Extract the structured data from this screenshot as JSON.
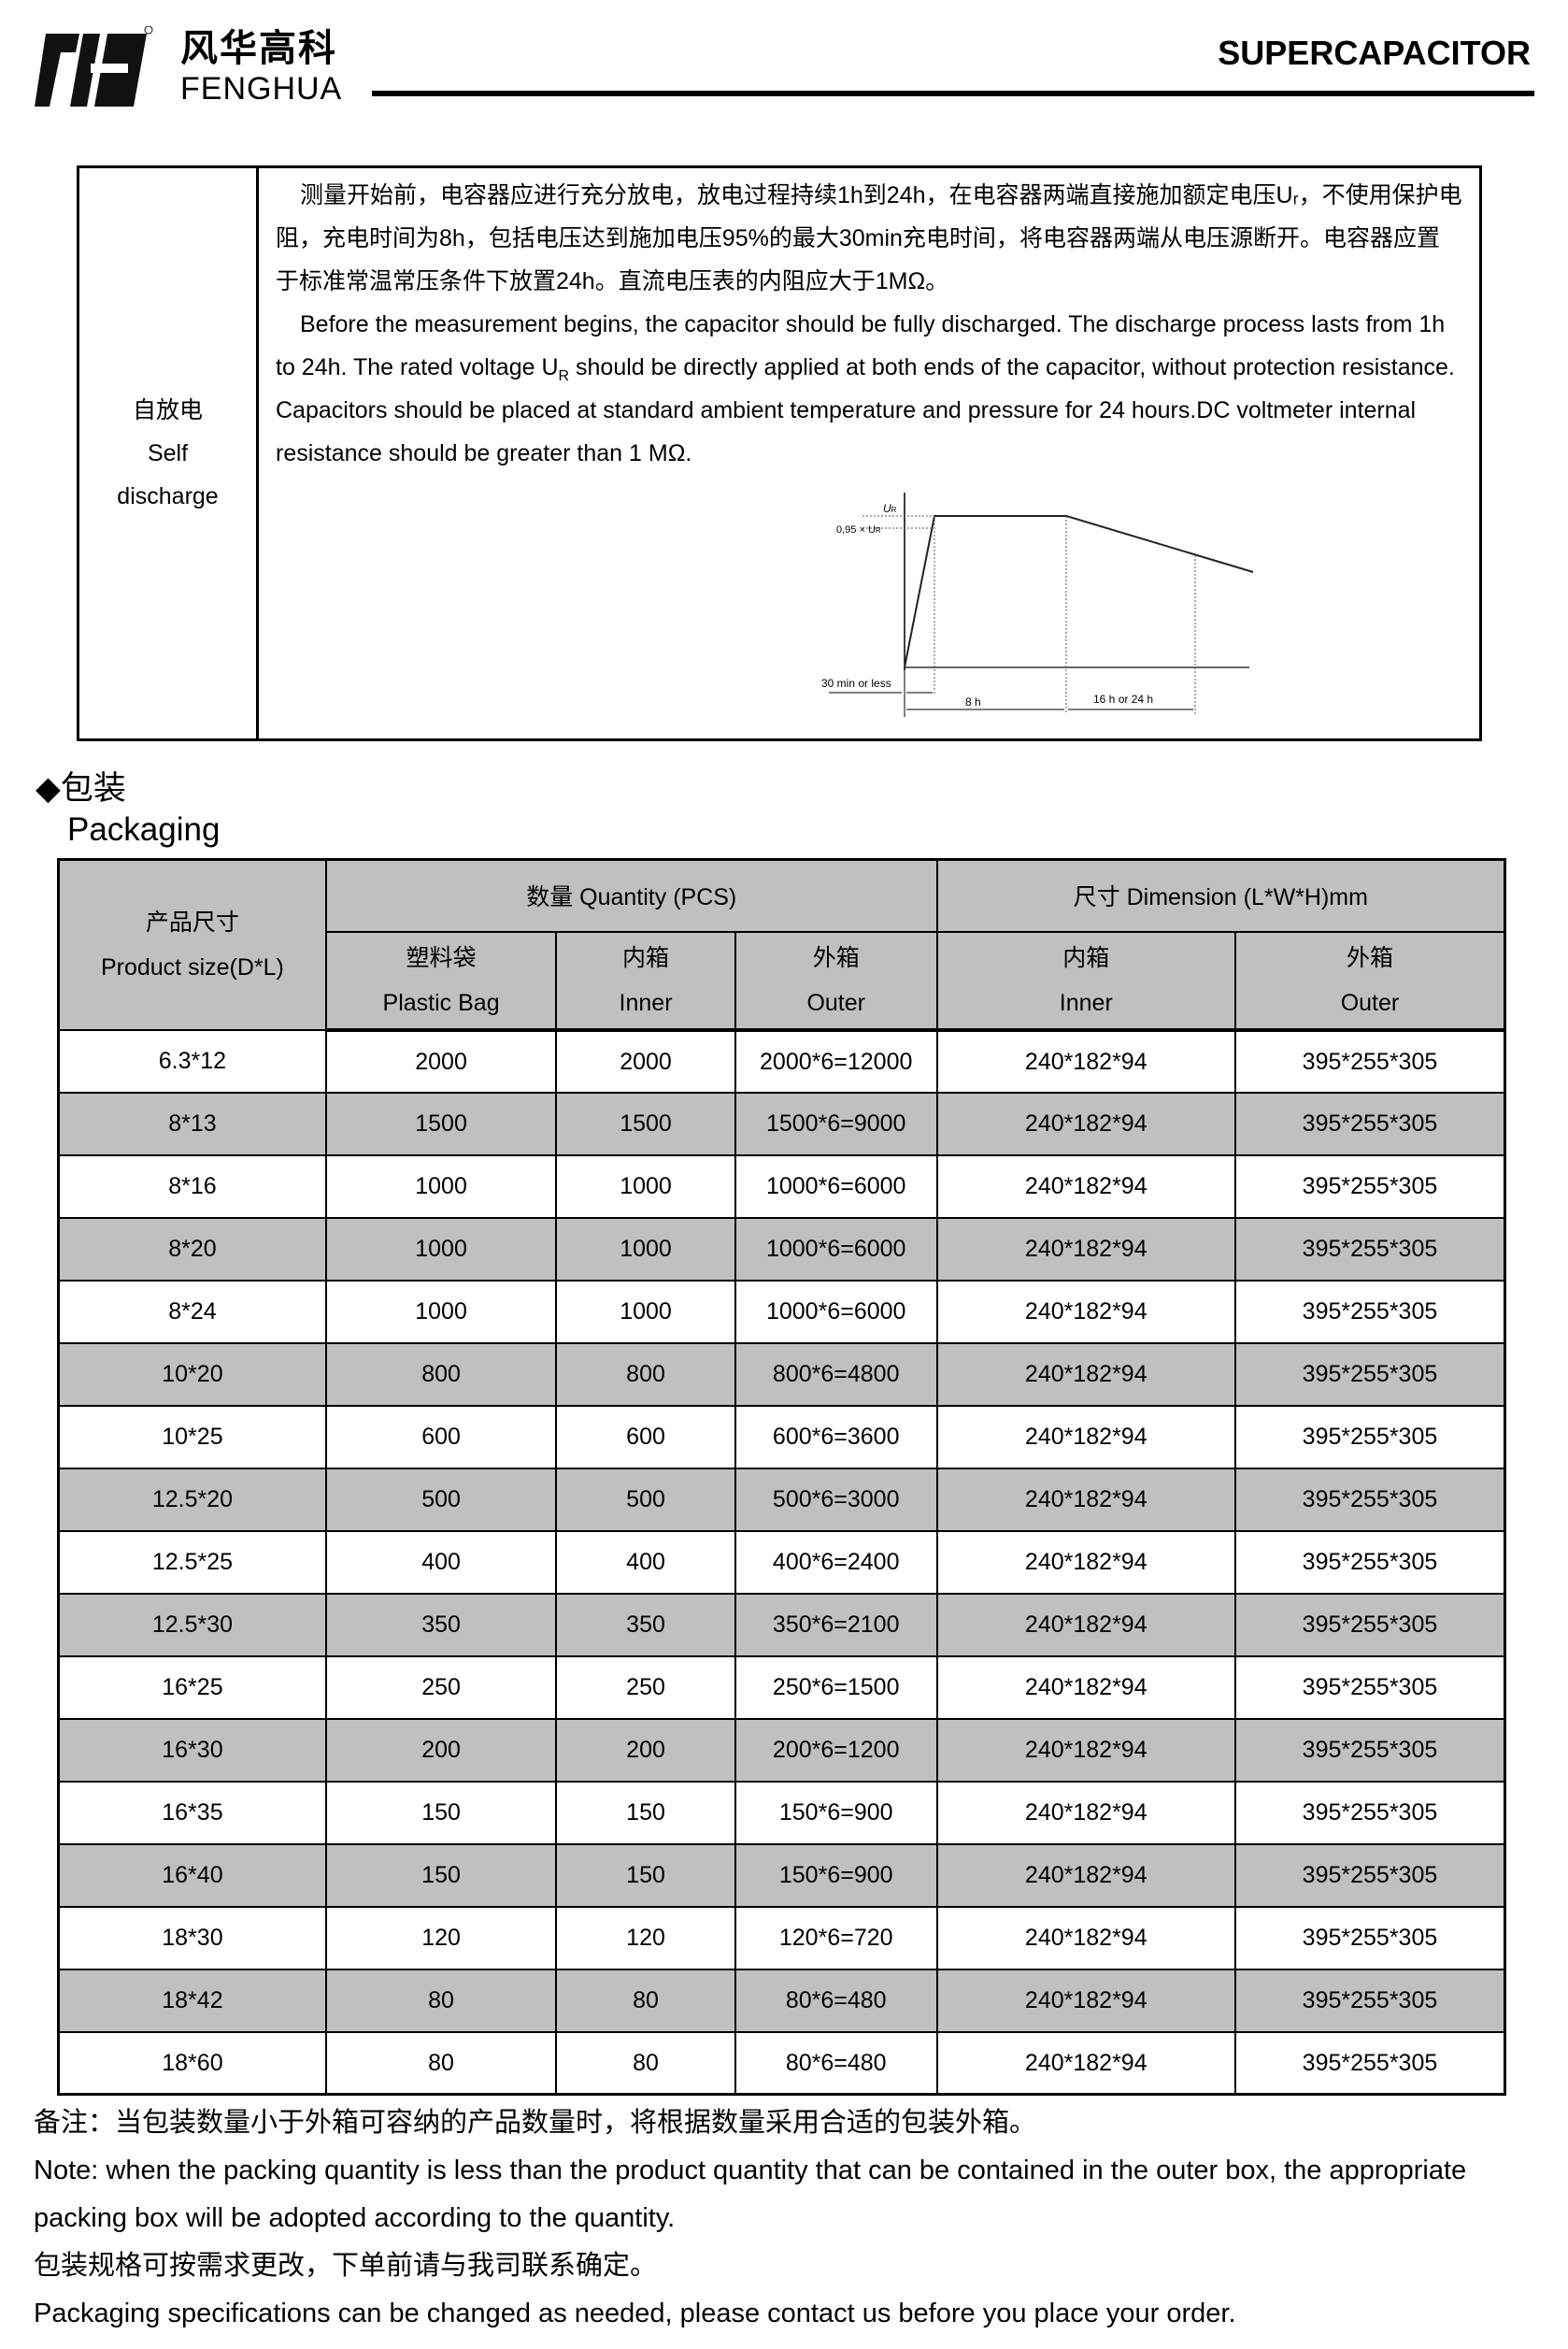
{
  "header": {
    "brand_cn": "风华高科",
    "brand_en": "FENGHUA",
    "logo_mark": "FH",
    "doc_title": "SUPERCAPACITOR"
  },
  "self_discharge": {
    "label_cn": "自放电",
    "label_en_1": "Self",
    "label_en_2": "discharge",
    "text_cn": "测量开始前，电容器应进行充分放电，放电过程持续1h到24h，在电容器两端直接施加额定电压Uᵣ，不使用保护电阻，充电时间为8h，包括电压达到施加电压95%的最大30min充电时间，将电容器两端从电压源断开。电容器应置于标准常温常压条件下放置24h。直流电压表的内阻应大于1MΩ。",
    "text_en_before": "Before the measurement begins, the capacitor should be fully discharged. The discharge process lasts from 1h to 24h. The rated voltage U",
    "text_en_sub": "R",
    "text_en_after": " should be directly applied at both ends of the capacitor, without protection resistance. Capacitors should be placed at standard ambient temperature and pressure for 24 hours.DC voltmeter internal resistance should be greater than 1 MΩ.",
    "diagram": {
      "label_ur": "U",
      "label_ur_sub": "R",
      "label_095": "0,95 × U",
      "label_30min": "30 min or less",
      "label_8h": "8 h",
      "label_16h": "16 h or 24 h"
    }
  },
  "packaging": {
    "heading_cn": "◆包装",
    "heading_en": "Packaging",
    "headers": {
      "product_size_cn": "产品尺寸",
      "product_size_en": "Product size(D*L)",
      "quantity": "数量 Quantity (PCS)",
      "dimension": "尺寸 Dimension (L*W*H)mm",
      "plastic_bag_cn": "塑料袋",
      "plastic_bag_en": "Plastic Bag",
      "inner_cn": "内箱",
      "inner_en": "Inner",
      "outer_cn": "外箱",
      "outer_en": "Outer",
      "dim_inner_cn": "内箱",
      "dim_inner_en": "Inner",
      "dim_outer_cn": "外箱",
      "dim_outer_en": "Outer"
    },
    "rows": [
      [
        "6.3*12",
        "2000",
        "2000",
        "2000*6=12000",
        "240*182*94",
        "395*255*305"
      ],
      [
        "8*13",
        "1500",
        "1500",
        "1500*6=9000",
        "240*182*94",
        "395*255*305"
      ],
      [
        "8*16",
        "1000",
        "1000",
        "1000*6=6000",
        "240*182*94",
        "395*255*305"
      ],
      [
        "8*20",
        "1000",
        "1000",
        "1000*6=6000",
        "240*182*94",
        "395*255*305"
      ],
      [
        "8*24",
        "1000",
        "1000",
        "1000*6=6000",
        "240*182*94",
        "395*255*305"
      ],
      [
        "10*20",
        "800",
        "800",
        "800*6=4800",
        "240*182*94",
        "395*255*305"
      ],
      [
        "10*25",
        "600",
        "600",
        "600*6=3600",
        "240*182*94",
        "395*255*305"
      ],
      [
        "12.5*20",
        "500",
        "500",
        "500*6=3000",
        "240*182*94",
        "395*255*305"
      ],
      [
        "12.5*25",
        "400",
        "400",
        "400*6=2400",
        "240*182*94",
        "395*255*305"
      ],
      [
        "12.5*30",
        "350",
        "350",
        "350*6=2100",
        "240*182*94",
        "395*255*305"
      ],
      [
        "16*25",
        "250",
        "250",
        "250*6=1500",
        "240*182*94",
        "395*255*305"
      ],
      [
        "16*30",
        "200",
        "200",
        "200*6=1200",
        "240*182*94",
        "395*255*305"
      ],
      [
        "16*35",
        "150",
        "150",
        "150*6=900",
        "240*182*94",
        "395*255*305"
      ],
      [
        "16*40",
        "150",
        "150",
        "150*6=900",
        "240*182*94",
        "395*255*305"
      ],
      [
        "18*30",
        "120",
        "120",
        "120*6=720",
        "240*182*94",
        "395*255*305"
      ],
      [
        "18*42",
        "80",
        "80",
        "80*6=480",
        "240*182*94",
        "395*255*305"
      ],
      [
        "18*60",
        "80",
        "80",
        "80*6=480",
        "240*182*94",
        "395*255*305"
      ]
    ],
    "row_alt_color": "#c0c0c0"
  },
  "notes": {
    "note_cn": "备注：当包装数量小于外箱可容纳的产品数量时，将根据数量采用合适的包装外箱。",
    "note_en_1": "Note: when the packing quantity is less than the product quantity that can be contained in the outer box, the appropriate",
    "note_en_2": "packing box will be adopted according to the quantity.",
    "spec_cn": "包装规格可按需求更改，下单前请与我司联系确定。",
    "spec_en": "Packaging specifications can be changed as needed, please contact us before you place your order."
  }
}
